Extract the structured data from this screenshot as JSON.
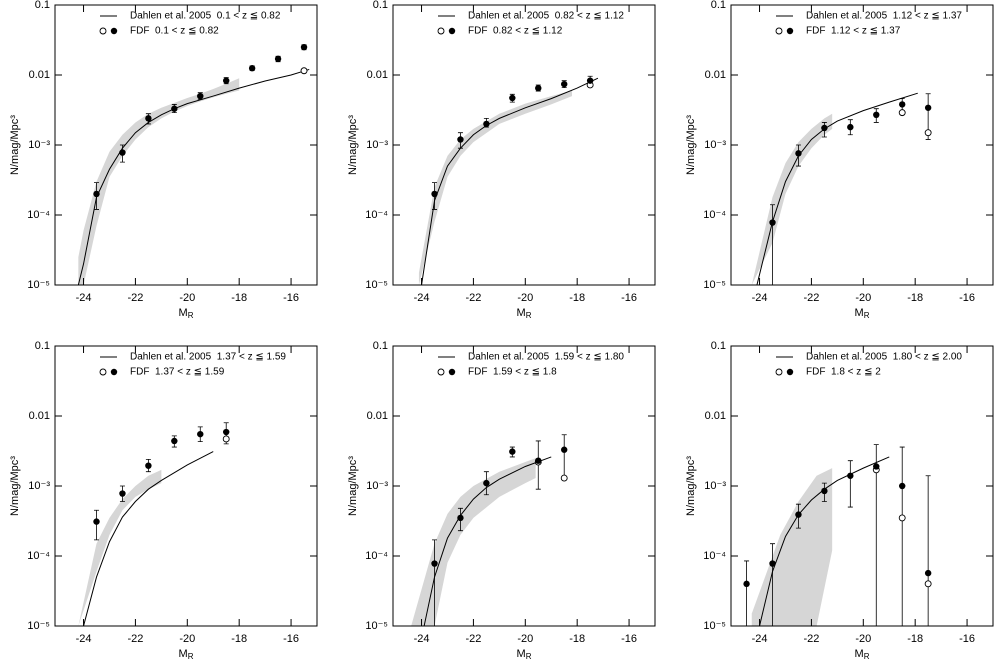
{
  "chart_data": [
    {
      "type": "scatter",
      "x_label": "M",
      "x_label_sub": "R",
      "y_label": "N/mag/Mpc³",
      "xlim": [
        -25.1,
        -15.0
      ],
      "xticks": [
        -24,
        -22,
        -20,
        -18,
        -16
      ],
      "ylim": [
        1e-05,
        0.1
      ],
      "log_y": true,
      "yticks": [
        0.1,
        0.01,
        {
          "value": 0.001,
          "label": "10⁻³"
        },
        {
          "value": 0.0001,
          "label": "10⁻⁴"
        },
        {
          "value": 1e-05,
          "label": "10⁻⁵"
        }
      ],
      "legend": "upper right",
      "band": {
        "color": "#d6d6d6",
        "x": [
          -24.2,
          -24,
          -23.5,
          -23,
          -22.5,
          -22,
          -21.5,
          -21,
          -20.5,
          -20,
          -19.5,
          -19,
          -18.5,
          -18
        ],
        "lower": [
          1e-05,
          1e-05,
          7e-05,
          0.00035,
          0.0007,
          0.0012,
          0.0018,
          0.0024,
          0.003,
          0.0036,
          0.0042,
          0.0048,
          0.0054,
          0.006
        ],
        "upper": [
          2.5e-05,
          6e-05,
          0.0003,
          0.0008,
          0.0014,
          0.0021,
          0.0028,
          0.0034,
          0.004,
          0.0047,
          0.0054,
          0.0063,
          0.0075,
          0.009
        ]
      },
      "series": [
        {
          "name": "Dahlen et al. 2005  0.1 < z ≦ 0.82",
          "style": "line",
          "color": "#000000",
          "x": [
            -24.2,
            -24,
            -23.5,
            -23,
            -22.5,
            -22,
            -21.5,
            -21,
            -20.5,
            -20,
            -19,
            -18,
            -17,
            -16,
            -15.3
          ],
          "values": [
            1e-05,
            2e-05,
            0.00018,
            0.00045,
            0.0009,
            0.0015,
            0.0021,
            0.0027,
            0.0033,
            0.0039,
            0.005,
            0.0065,
            0.0082,
            0.01,
            0.012
          ]
        },
        {
          "name": "FDF  0.1 < z ≦ 0.82",
          "style": "points",
          "color": "#000000",
          "x": [
            -23.5,
            -22.5,
            -21.5,
            -20.5,
            -19.5,
            -18.5,
            -17.5,
            -16.5,
            -15.5
          ],
          "values": [
            0.0002,
            0.00078,
            0.0024,
            0.0033,
            0.005,
            0.0083,
            0.0125,
            0.017,
            0.025
          ],
          "err_upper": [
            0.00029,
            0.001,
            0.0028,
            0.0038,
            0.0056,
            0.0092,
            0.0135,
            0.0185,
            0.027
          ],
          "err_lower": [
            0.00012,
            0.00057,
            0.002,
            0.0029,
            0.0045,
            0.0075,
            0.0116,
            0.0155,
            0.023
          ],
          "open_values": [
            null,
            null,
            null,
            null,
            null,
            null,
            null,
            null,
            0.0115
          ]
        }
      ]
    },
    {
      "type": "scatter",
      "x_label": "M",
      "x_label_sub": "R",
      "y_label": "N/mag/Mpc³",
      "xlim": [
        -25.1,
        -15.0
      ],
      "xticks": [
        -24,
        -22,
        -20,
        -18,
        -16
      ],
      "ylim": [
        1e-05,
        0.1
      ],
      "log_y": true,
      "yticks": [
        0.1,
        0.01,
        {
          "value": 0.001,
          "label": "10⁻³"
        },
        {
          "value": 0.0001,
          "label": "10⁻⁴"
        },
        {
          "value": 1e-05,
          "label": "10⁻⁵"
        }
      ],
      "legend": "upper right",
      "band": {
        "color": "#d6d6d6",
        "x": [
          -24.1,
          -23.5,
          -23,
          -22.5,
          -22,
          -21,
          -20,
          -19,
          -18.2
        ],
        "lower": [
          1e-05,
          8e-05,
          0.00035,
          0.0007,
          0.0011,
          0.002,
          0.0028,
          0.0038,
          0.005
        ],
        "upper": [
          1.5e-05,
          0.00025,
          0.0007,
          0.0012,
          0.0017,
          0.0028,
          0.0039,
          0.005,
          0.006
        ]
      },
      "series": [
        {
          "name": "Dahlen et al. 2005  0.82 < z ≦ 1.12",
          "style": "line",
          "color": "#000000",
          "x": [
            -24,
            -23.5,
            -23,
            -22.5,
            -22,
            -21.5,
            -21,
            -20,
            -19,
            -18,
            -17.2
          ],
          "values": [
            1e-05,
            0.00016,
            0.0005,
            0.0009,
            0.0014,
            0.0019,
            0.0024,
            0.0034,
            0.0046,
            0.0065,
            0.009
          ]
        },
        {
          "name": "FDF  0.82 < z ≦ 1.12",
          "style": "points",
          "color": "#000000",
          "x": [
            -23.5,
            -22.5,
            -21.5,
            -20.5,
            -19.5,
            -18.5,
            -17.5
          ],
          "values": [
            0.0002,
            0.0012,
            0.002,
            0.0047,
            0.0065,
            0.0074,
            0.0083
          ],
          "err_upper": [
            0.00029,
            0.0015,
            0.0024,
            0.0053,
            0.0072,
            0.0083,
            0.0096
          ],
          "err_lower": [
            0.00012,
            0.0009,
            0.0018,
            0.0041,
            0.0059,
            0.0066,
            0.0074
          ],
          "open_values": [
            null,
            null,
            null,
            null,
            null,
            null,
            0.0072
          ]
        }
      ]
    },
    {
      "type": "scatter",
      "x_label": "M",
      "x_label_sub": "R",
      "y_label": "N/mag/Mpc³",
      "xlim": [
        -25.1,
        -15.0
      ],
      "xticks": [
        -24,
        -22,
        -20,
        -18,
        -16
      ],
      "ylim": [
        1e-05,
        0.1
      ],
      "log_y": true,
      "yticks": [
        0.1,
        0.01,
        {
          "value": 0.001,
          "label": "10⁻³"
        },
        {
          "value": 0.0001,
          "label": "10⁻⁴"
        },
        {
          "value": 1e-05,
          "label": "10⁻⁵"
        }
      ],
      "legend": "upper right",
      "band": {
        "color": "#d6d6d6",
        "x": [
          -24.3,
          -23.5,
          -23,
          -22.5,
          -22,
          -21.5,
          -21.2
        ],
        "lower": [
          1e-05,
          4e-05,
          0.0002,
          0.0005,
          0.0009,
          0.0014,
          0.0017
        ],
        "upper": [
          1e-05,
          0.00018,
          0.00055,
          0.0011,
          0.0017,
          0.0024,
          0.0028
        ]
      },
      "series": [
        {
          "name": "Dahlen et al. 2005  1.12 < z ≦ 1.37",
          "style": "line",
          "color": "#000000",
          "x": [
            -24.1,
            -23.5,
            -23,
            -22.5,
            -22,
            -21.5,
            -21,
            -20,
            -19,
            -17.9
          ],
          "values": [
            1e-05,
            8e-05,
            0.0003,
            0.0007,
            0.0012,
            0.0017,
            0.0022,
            0.0031,
            0.0041,
            0.0055
          ]
        },
        {
          "name": "FDF  1.12 < z ≦ 1.37",
          "style": "points",
          "color": "#000000",
          "x": [
            -23.5,
            -22.5,
            -21.5,
            -20.5,
            -19.5,
            -18.5,
            -17.5
          ],
          "values": [
            7.8e-05,
            0.00076,
            0.00175,
            0.0018,
            0.0027,
            0.0038,
            0.0034
          ],
          "err_upper": [
            0.00014,
            0.001,
            0.0021,
            0.0023,
            0.0033,
            0.0046,
            0.0054
          ],
          "err_lower": [
            1e-05,
            0.0005,
            0.0013,
            0.0014,
            0.0021,
            0.003,
            0.0012
          ],
          "open_values": [
            null,
            null,
            null,
            null,
            null,
            0.0029,
            0.0015
          ]
        }
      ]
    },
    {
      "type": "scatter",
      "x_label": "M",
      "x_label_sub": "R",
      "y_label": "N/mag/Mpc³",
      "xlim": [
        -25.1,
        -15.0
      ],
      "xticks": [
        -24,
        -22,
        -20,
        -18,
        -16
      ],
      "ylim": [
        1e-05,
        0.1
      ],
      "log_y": true,
      "yticks": [
        0.1,
        0.01,
        {
          "value": 0.001,
          "label": "10⁻³"
        },
        {
          "value": 0.0001,
          "label": "10⁻⁴"
        },
        {
          "value": 1e-05,
          "label": "10⁻⁵"
        }
      ],
      "legend": "upper right",
      "band": {
        "color": "#d6d6d6",
        "x": [
          -24.2,
          -23.5,
          -23,
          -22.5,
          -22,
          -21.5,
          -21
        ],
        "lower": [
          1e-05,
          6e-05,
          0.0002,
          0.00045,
          0.0007,
          0.0009,
          0.0011
        ],
        "upper": [
          1e-05,
          0.00015,
          0.00035,
          0.00065,
          0.001,
          0.0014,
          0.0017
        ]
      },
      "series": [
        {
          "name": "Dahlen et al. 2005  1.37 < z ≦ 1.59",
          "style": "line",
          "color": "#000000",
          "x": [
            -24,
            -23.5,
            -23,
            -22.5,
            -22,
            -21.5,
            -21,
            -20,
            -19
          ],
          "values": [
            1e-05,
            5e-05,
            0.00016,
            0.00036,
            0.0006,
            0.0009,
            0.0012,
            0.002,
            0.0031
          ]
        },
        {
          "name": "FDF  1.37 < z ≦ 1.59",
          "style": "points",
          "color": "#000000",
          "x": [
            -23.5,
            -22.5,
            -21.5,
            -20.5,
            -19.5,
            -18.5
          ],
          "values": [
            0.00031,
            0.00078,
            0.00195,
            0.0044,
            0.0055,
            0.0059
          ],
          "err_upper": [
            0.00045,
            0.001,
            0.0024,
            0.0052,
            0.007,
            0.008
          ],
          "err_lower": [
            0.00017,
            0.0006,
            0.0016,
            0.0036,
            0.0043,
            0.004
          ],
          "open_values": [
            null,
            null,
            null,
            null,
            null,
            0.0047
          ]
        }
      ]
    },
    {
      "type": "scatter",
      "x_label": "M",
      "x_label_sub": "R",
      "y_label": "N/mag/Mpc³",
      "xlim": [
        -25.1,
        -15.0
      ],
      "xticks": [
        -24,
        -22,
        -20,
        -18,
        -16
      ],
      "ylim": [
        1e-05,
        0.1
      ],
      "log_y": true,
      "yticks": [
        0.1,
        0.01,
        {
          "value": 0.001,
          "label": "10⁻³"
        },
        {
          "value": 0.0001,
          "label": "10⁻⁴"
        },
        {
          "value": 1e-05,
          "label": "10⁻⁵"
        }
      ],
      "legend": "upper right",
      "band": {
        "color": "#d6d6d6",
        "x": [
          -24.4,
          -23.5,
          -23,
          -22.5,
          -22,
          -21,
          -20,
          -19.6
        ],
        "lower": [
          1e-05,
          1e-05,
          8e-05,
          0.0002,
          0.00035,
          0.0007,
          0.0011,
          0.0013
        ],
        "upper": [
          1e-05,
          0.00015,
          0.0004,
          0.0007,
          0.001,
          0.0016,
          0.0022,
          0.0025
        ]
      },
      "series": [
        {
          "name": "Dahlen et al. 2005  1.59 < z ≦ 1.80",
          "style": "line",
          "color": "#000000",
          "x": [
            -23.9,
            -23.5,
            -23,
            -22.5,
            -22,
            -21.5,
            -21,
            -20,
            -19
          ],
          "values": [
            1e-05,
            5e-05,
            0.00018,
            0.00038,
            0.00065,
            0.00095,
            0.00125,
            0.0019,
            0.0026
          ]
        },
        {
          "name": "FDF  1.59 < z ≦ 1.8",
          "style": "points",
          "color": "#000000",
          "x": [
            -23.5,
            -22.5,
            -21.5,
            -20.5,
            -19.5,
            -18.5
          ],
          "values": [
            7.8e-05,
            0.00035,
            0.0011,
            0.0031,
            0.0023,
            0.0033
          ],
          "err_upper": [
            0.00017,
            0.00048,
            0.0016,
            0.0036,
            0.0044,
            0.0054
          ],
          "err_lower": [
            1e-05,
            0.00023,
            0.00075,
            0.0026,
            0.0009,
            0.0013
          ],
          "open_values": [
            null,
            null,
            null,
            null,
            0.0022,
            0.0013
          ]
        }
      ]
    },
    {
      "type": "scatter",
      "x_label": "M",
      "x_label_sub": "R",
      "y_label": "N/mag/Mpc³",
      "xlim": [
        -25.1,
        -15.0
      ],
      "xticks": [
        -24,
        -22,
        -20,
        -18,
        -16
      ],
      "ylim": [
        1e-05,
        0.1
      ],
      "log_y": true,
      "yticks": [
        0.1,
        0.01,
        {
          "value": 0.001,
          "label": "10⁻³"
        },
        {
          "value": 0.0001,
          "label": "10⁻⁴"
        },
        {
          "value": 1e-05,
          "label": "10⁻⁵"
        }
      ],
      "legend": "upper right",
      "band": {
        "color": "#d6d6d6",
        "x": [
          -24.3,
          -23.2,
          -22.5,
          -22,
          -21.8,
          -21.2
        ],
        "lower": [
          1e-05,
          1e-05,
          1e-05,
          1e-05,
          1e-05,
          0.00012
        ],
        "upper": [
          1.5e-05,
          0.0002,
          0.0006,
          0.0011,
          0.0014,
          0.0018
        ]
      },
      "series": [
        {
          "name": "Dahlen et al. 2005  1.80 < z ≦ 2.00",
          "style": "line",
          "color": "#000000",
          "x": [
            -24,
            -23.5,
            -23,
            -22.5,
            -22,
            -21.5,
            -21,
            -20,
            -19
          ],
          "values": [
            1e-05,
            6e-05,
            0.00019,
            0.00039,
            0.00063,
            0.0009,
            0.0012,
            0.0018,
            0.0026
          ]
        },
        {
          "name": "FDF  1.8 < z ≦ 2",
          "style": "points",
          "color": "#000000",
          "x": [
            -24.5,
            -23.5,
            -22.5,
            -21.5,
            -20.5,
            -19.5,
            -18.5,
            -17.5
          ],
          "values": [
            4e-05,
            7.8e-05,
            0.00039,
            0.00085,
            0.0014,
            0.0019,
            0.001,
            5.7e-05
          ],
          "err_upper": [
            8.5e-05,
            0.00015,
            0.00055,
            0.0011,
            0.0023,
            0.0039,
            0.0036,
            0.0014
          ],
          "err_lower": [
            1e-05,
            1e-05,
            0.00025,
            0.0006,
            0.0005,
            1e-05,
            1e-05,
            1e-05
          ],
          "open_values": [
            null,
            null,
            null,
            null,
            null,
            0.0017,
            0.00035,
            4e-05
          ]
        }
      ]
    }
  ]
}
